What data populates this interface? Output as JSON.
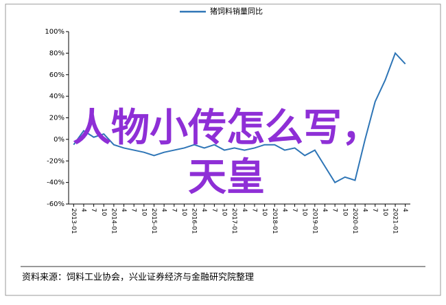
{
  "chart_data": {
    "type": "line",
    "title": "猪饲料销量同比",
    "annotations": [
      "人物小传怎么写，",
      "天皇"
    ],
    "source": "资料来源：饲料工业协会，兴业证券经济与金融研究院整理",
    "categories": [
      "2013-01",
      "4",
      "7",
      "10",
      "2014-01",
      "4",
      "7",
      "10",
      "2015-01",
      "4",
      "7",
      "10",
      "2016-01",
      "4",
      "7",
      "10",
      "2017-01",
      "4",
      "7",
      "10",
      "2018-01",
      "4",
      "7",
      "10",
      "2019-01",
      "4",
      "7",
      "10",
      "2020-01",
      "4",
      "7",
      "10",
      "2021-01",
      "4"
    ],
    "series": [
      {
        "name": "猪饲料销量同比",
        "color": "#2e75b6",
        "values": [
          -5,
          8,
          2,
          5,
          -5,
          -8,
          -10,
          -12,
          -15,
          -12,
          -10,
          -8,
          -5,
          -8,
          -5,
          -10,
          -8,
          -10,
          -8,
          -5,
          -5,
          -10,
          -8,
          -15,
          -10,
          -25,
          -40,
          -35,
          -38,
          0,
          35,
          55,
          80,
          70
        ]
      }
    ],
    "ylim": [
      -60,
      100
    ],
    "yticks": [
      {
        "value": -60,
        "label": "-60%"
      },
      {
        "value": -40,
        "label": "-40%"
      },
      {
        "value": -20,
        "label": "-20%"
      },
      {
        "value": 0,
        "label": "0%"
      },
      {
        "value": 20,
        "label": "20%"
      },
      {
        "value": 40,
        "label": "40%"
      },
      {
        "value": 60,
        "label": "60%"
      },
      {
        "value": 80,
        "label": "80%"
      },
      {
        "value": 100,
        "label": "100%"
      }
    ],
    "grid": false
  }
}
